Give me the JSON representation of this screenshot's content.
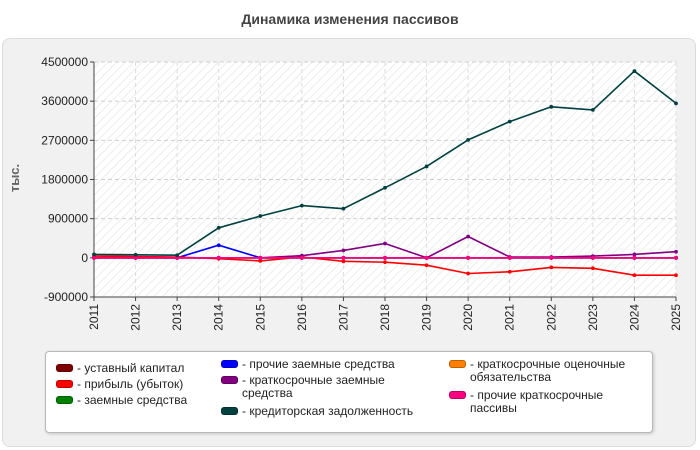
{
  "chart_data": {
    "type": "line",
    "title": "Динамика изменения пассивов",
    "ylabel": "тыс.",
    "xlabel": "",
    "x": [
      "2011",
      "2012",
      "2013",
      "2014",
      "2015",
      "2016",
      "2017",
      "2018",
      "2019",
      "2020",
      "2021",
      "2022",
      "2023",
      "2024",
      "2025"
    ],
    "ylim": [
      -900000,
      4500000
    ],
    "yticks": [
      -900000,
      0,
      900000,
      1800000,
      2700000,
      3600000,
      4500000
    ],
    "ytick_labels": [
      "-900000",
      "0",
      "900000",
      "1800000",
      "2700000",
      "3600000",
      "4500000"
    ],
    "grid": true,
    "legend_position": "bottom",
    "series": [
      {
        "name": "устaвный капитал",
        "color": "#7f0000",
        "values": [
          10,
          10,
          10,
          10,
          10,
          10,
          10,
          10,
          10,
          10,
          10,
          10,
          10,
          10,
          10
        ]
      },
      {
        "name": "прибыль (убыток)",
        "color": "#ff0000",
        "values": [
          40000,
          30000,
          20000,
          -20000,
          -70000,
          20000,
          -80000,
          -100000,
          -170000,
          -360000,
          -320000,
          -220000,
          -240000,
          -400000,
          -400000
        ]
      },
      {
        "name": "заемные средства",
        "color": "#008000",
        "values": [
          0,
          0,
          0,
          0,
          0,
          0,
          0,
          0,
          0,
          0,
          0,
          0,
          0,
          0,
          0
        ]
      },
      {
        "name": "прочие заемные средства",
        "color": "#0000ff",
        "values": [
          0,
          0,
          0,
          290000,
          0,
          0,
          0,
          0,
          0,
          0,
          0,
          0,
          0,
          0,
          0
        ]
      },
      {
        "name": "краткосрочные заемные средства",
        "color": "#800080",
        "values": [
          0,
          0,
          0,
          0,
          0,
          50000,
          170000,
          330000,
          0,
          490000,
          20000,
          20000,
          40000,
          80000,
          140000
        ]
      },
      {
        "name": "кредиторская задолженность",
        "color": "#004040",
        "values": [
          80000,
          70000,
          60000,
          690000,
          960000,
          1200000,
          1130000,
          1610000,
          2100000,
          2710000,
          3130000,
          3470000,
          3400000,
          4290000,
          3550000
        ]
      },
      {
        "name": "краткосрочные оценочные обязательства",
        "color": "#ff8000",
        "values": [
          0,
          0,
          0,
          0,
          0,
          0,
          0,
          0,
          0,
          0,
          0,
          0,
          0,
          0,
          0
        ]
      },
      {
        "name": "прочие краткосрочные пассивы",
        "color": "#ff0080",
        "values": [
          0,
          0,
          0,
          0,
          0,
          0,
          0,
          0,
          0,
          0,
          0,
          0,
          0,
          0,
          0
        ]
      }
    ]
  },
  "legend": {
    "items": [
      {
        "label": "- уставный капитал",
        "color": "#7f0000"
      },
      {
        "label": "- прибыль (убыток)",
        "color": "#ff0000"
      },
      {
        "label": "- заемные средства",
        "color": "#008000"
      },
      {
        "label": "- прочие заемные средства",
        "color": "#0000ff"
      },
      {
        "label": "- краткосрочные заемные средства",
        "color": "#800080"
      },
      {
        "label": "- кредиторская задолженность",
        "color": "#004040"
      },
      {
        "label": "- краткосрочные оценочные обязательства",
        "color": "#ff8000"
      },
      {
        "label": "- прочие краткосрочные пассивы",
        "color": "#ff0080"
      }
    ]
  }
}
